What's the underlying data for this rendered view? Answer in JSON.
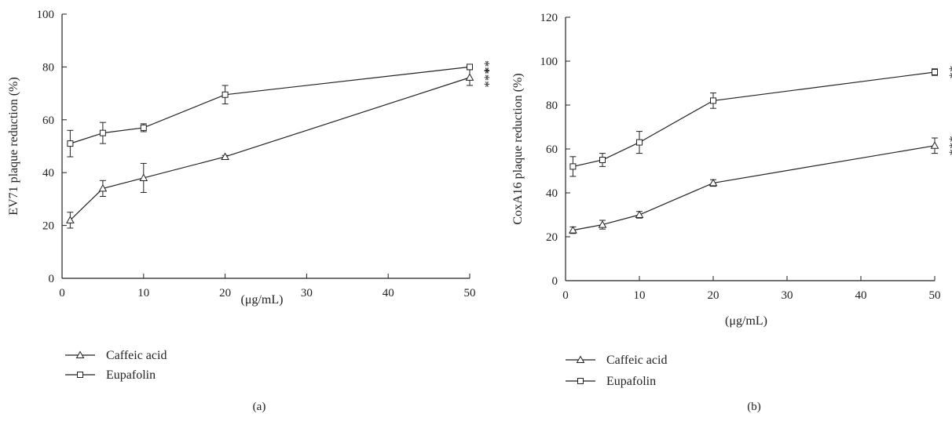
{
  "chart_data": [
    {
      "type": "line",
      "panel_label": "(a)",
      "xlabel": "(μg/mL)",
      "ylabel": "EV71 plaque reduction (%)",
      "xlim": [
        0,
        50
      ],
      "ylim": [
        0,
        100
      ],
      "xticks": [
        0,
        10,
        20,
        30,
        40,
        50
      ],
      "yticks": [
        0,
        20,
        40,
        60,
        80,
        100
      ],
      "xtick_labels": [
        "0",
        "10",
        "20",
        "30",
        "40",
        "50"
      ],
      "ytick_labels": [
        "0",
        "20",
        "40",
        "60",
        "80",
        "100"
      ],
      "x": [
        1,
        5,
        10,
        20,
        50
      ],
      "series": [
        {
          "name": "Caffeic acid",
          "marker": "triangle",
          "values": [
            22,
            34,
            38,
            46,
            76
          ],
          "errors": [
            3,
            3,
            5.5,
            0.5,
            3
          ],
          "significance": "***"
        },
        {
          "name": "Eupafolin",
          "marker": "square",
          "values": [
            51,
            55,
            57,
            69.5,
            80
          ],
          "errors": [
            5,
            4,
            1.5,
            3.5,
            1
          ],
          "significance": "**"
        }
      ]
    },
    {
      "type": "line",
      "panel_label": "(b)",
      "xlabel": "(μg/mL)",
      "ylabel": "CoxA16 plaque reduction (%)",
      "xlim": [
        0,
        50
      ],
      "ylim": [
        0,
        120
      ],
      "xticks": [
        0,
        10,
        20,
        30,
        40,
        50
      ],
      "yticks": [
        0,
        20,
        40,
        60,
        80,
        100,
        120
      ],
      "xtick_labels": [
        "0",
        "10",
        "20",
        "30",
        "40",
        "50"
      ],
      "ytick_labels": [
        "0",
        "20",
        "40",
        "60",
        "80",
        "100",
        "120"
      ],
      "x": [
        1,
        5,
        10,
        20,
        50
      ],
      "series": [
        {
          "name": "Caffeic acid",
          "marker": "triangle",
          "values": [
            23,
            25.5,
            30,
            44.5,
            61.5
          ],
          "errors": [
            1.5,
            2,
            1.5,
            1.5,
            3.5
          ],
          "significance": "***"
        },
        {
          "name": "Eupafolin",
          "marker": "square",
          "values": [
            52,
            55,
            63,
            82,
            95
          ],
          "errors": [
            4.5,
            3,
            5,
            3.5,
            1.5
          ],
          "significance": "**"
        }
      ]
    }
  ]
}
